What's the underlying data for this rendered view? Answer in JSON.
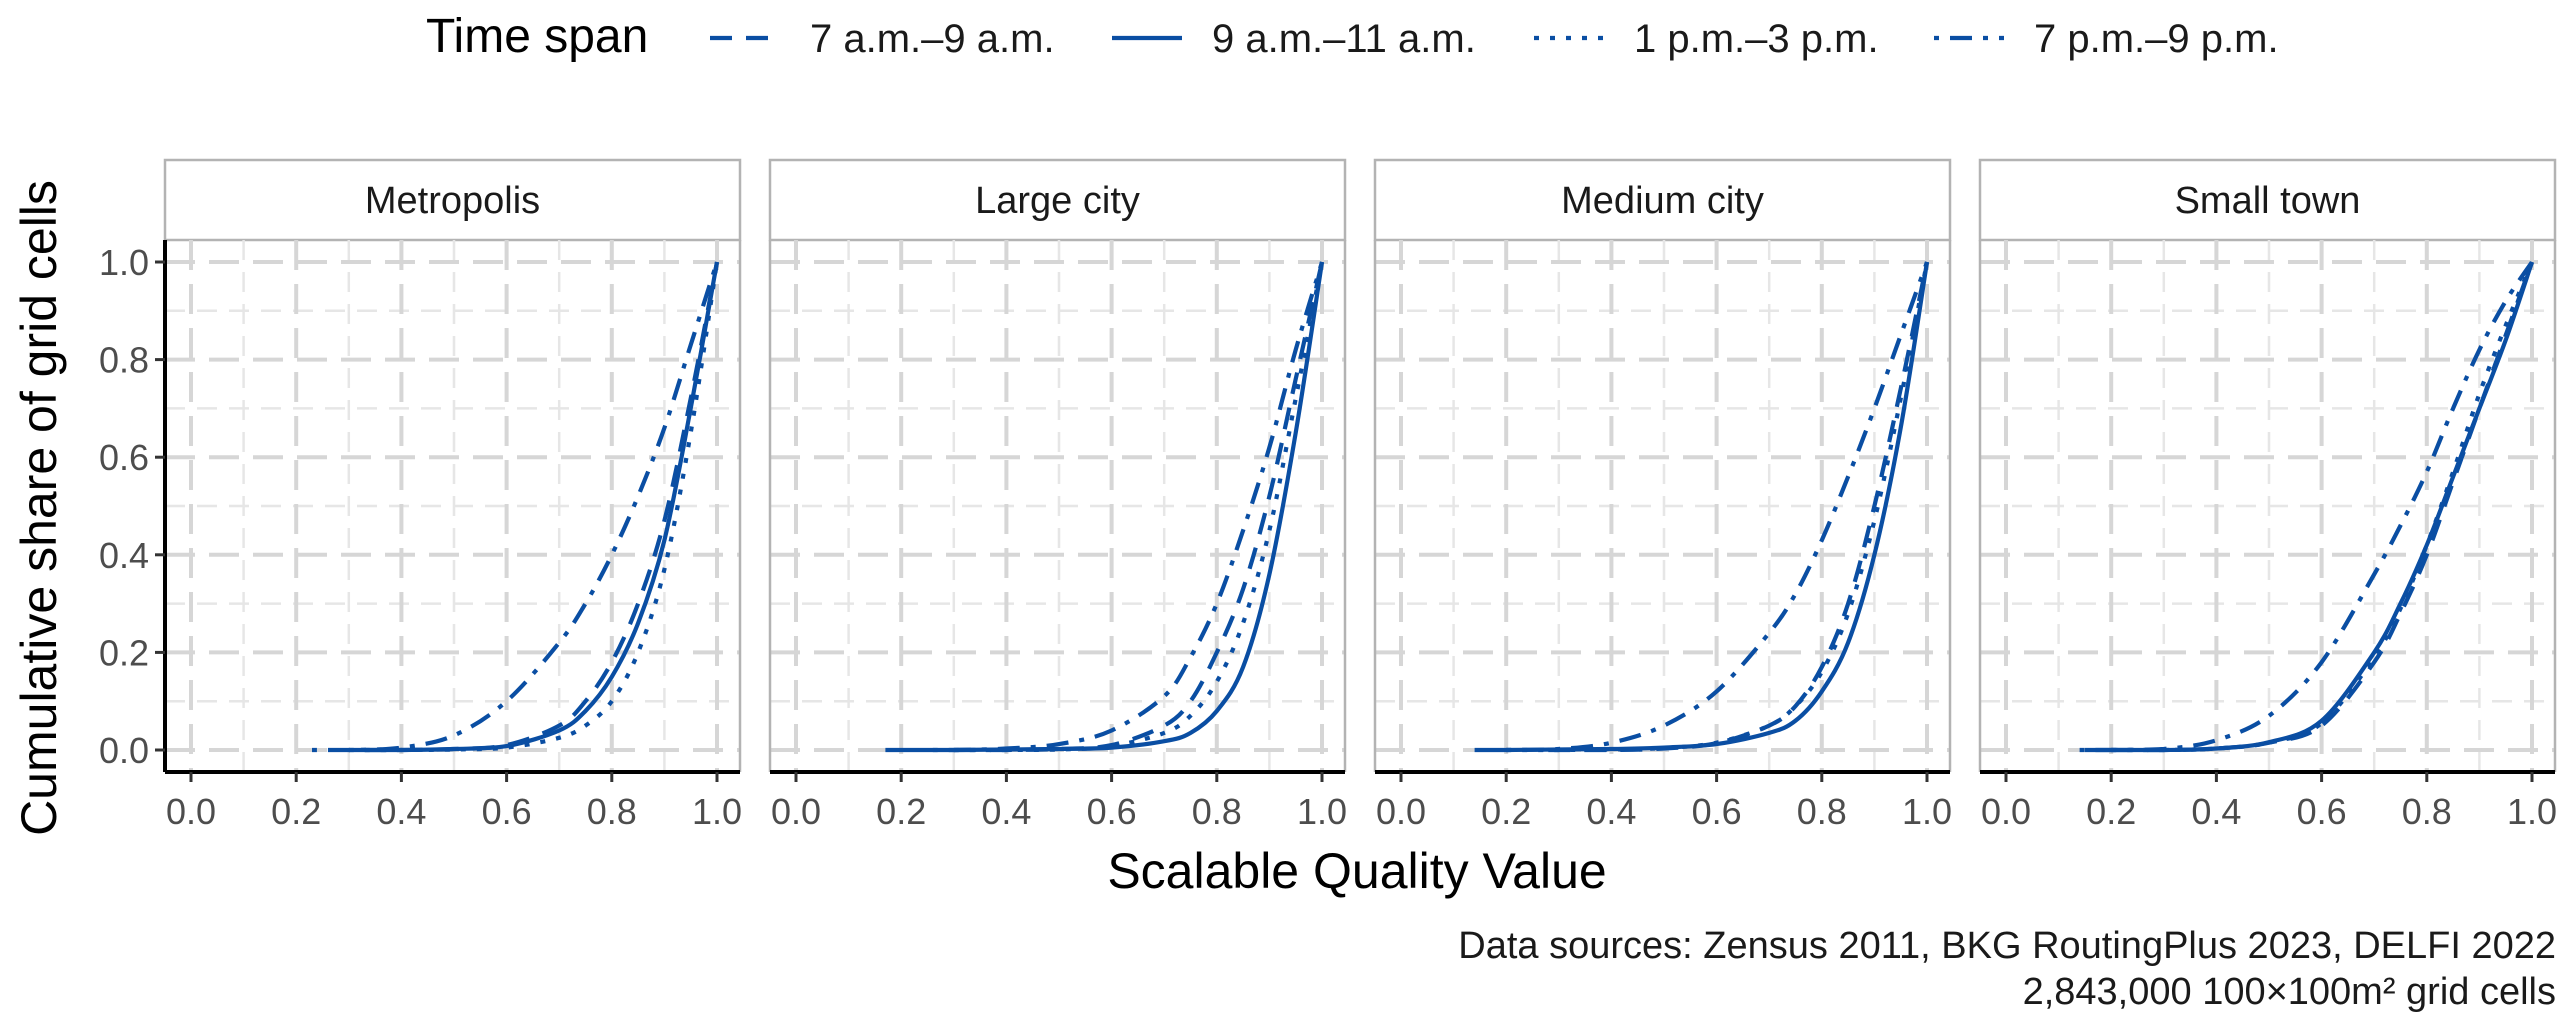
{
  "legend": {
    "title": "Time span",
    "items": [
      {
        "label": "7 a.m.–9 a.m.",
        "style": "dashed"
      },
      {
        "label": "9 a.m.–11 a.m.",
        "style": "solid"
      },
      {
        "label": "1 p.m.–3 p.m.",
        "style": "dotted"
      },
      {
        "label": "7 p.m.–9 p.m.",
        "style": "dotdash"
      }
    ]
  },
  "colors": {
    "series": "#0a4ea3"
  },
  "y_axis_title": "Cumulative share of grid cells",
  "x_axis_title": "Scalable Quality Value",
  "caption": {
    "line1": "Data sources: Zensus 2011, BKG RoutingPlus 2023, DELFI 2022",
    "line2": "2,843,000 100×100m² grid cells"
  },
  "chart_data": {
    "type": "line",
    "title": "",
    "xlabel": "Scalable Quality Value",
    "ylabel": "Cumulative share of grid cells",
    "xlim": [
      0,
      1
    ],
    "ylim": [
      0,
      1
    ],
    "x_ticks": [
      "0.0",
      "0.2",
      "0.4",
      "0.6",
      "0.8",
      "1.0"
    ],
    "y_ticks": [
      "0.0",
      "0.2",
      "0.4",
      "0.6",
      "0.8",
      "1.0"
    ],
    "legend_title": "Time span",
    "legend_position": "top",
    "x": [
      0.0,
      0.1,
      0.2,
      0.3,
      0.4,
      0.5,
      0.6,
      0.7,
      0.75,
      0.8,
      0.85,
      0.9,
      0.95,
      1.0
    ],
    "panels": [
      {
        "name": "Metropolis",
        "series": [
          {
            "name": "7 a.m.–9 a.m.",
            "x_min": 0.33,
            "values": [
              0,
              0,
              0,
              0,
              0,
              0.002,
              0.01,
              0.05,
              0.1,
              0.18,
              0.3,
              0.47,
              0.72,
              1.0
            ]
          },
          {
            "name": "9 a.m.–11 a.m.",
            "x_min": 0.3,
            "values": [
              0,
              0,
              0,
              0,
              0,
              0.002,
              0.008,
              0.04,
              0.08,
              0.15,
              0.26,
              0.43,
              0.7,
              1.0
            ]
          },
          {
            "name": "1 p.m.–3 p.m.",
            "x_min": 0.3,
            "values": [
              0,
              0,
              0,
              0,
              0,
              0.001,
              0.005,
              0.025,
              0.05,
              0.1,
              0.2,
              0.37,
              0.65,
              1.0
            ]
          },
          {
            "name": "7 p.m.–9 p.m.",
            "x_min": 0.23,
            "values": [
              0,
              0,
              0,
              0,
              0.005,
              0.03,
              0.1,
              0.22,
              0.3,
              0.4,
              0.52,
              0.66,
              0.83,
              1.0
            ]
          }
        ]
      },
      {
        "name": "Large city",
        "series": [
          {
            "name": "7 a.m.–9 a.m.",
            "x_min": 0.3,
            "values": [
              0,
              0,
              0,
              0,
              0,
              0.002,
              0.01,
              0.05,
              0.1,
              0.2,
              0.33,
              0.52,
              0.76,
              1.0
            ]
          },
          {
            "name": "9 a.m.–11 a.m.",
            "x_min": 0.17,
            "values": [
              0,
              0,
              0,
              0,
              0.001,
              0.002,
              0.005,
              0.018,
              0.035,
              0.08,
              0.17,
              0.36,
              0.65,
              1.0
            ]
          },
          {
            "name": "1 p.m.–3 p.m.",
            "x_min": 0.3,
            "values": [
              0,
              0,
              0,
              0,
              0,
              0.001,
              0.008,
              0.035,
              0.07,
              0.14,
              0.26,
              0.45,
              0.72,
              1.0
            ]
          },
          {
            "name": "7 p.m.–9 p.m.",
            "x_min": 0.26,
            "values": [
              0,
              0,
              0,
              0,
              0.003,
              0.012,
              0.04,
              0.11,
              0.19,
              0.3,
              0.45,
              0.62,
              0.82,
              1.0
            ]
          }
        ]
      },
      {
        "name": "Medium city",
        "series": [
          {
            "name": "7 a.m.–9 a.m.",
            "x_min": 0.28,
            "values": [
              0,
              0,
              0,
              0,
              0,
              0.003,
              0.014,
              0.05,
              0.09,
              0.17,
              0.3,
              0.5,
              0.74,
              1.0
            ]
          },
          {
            "name": "9 a.m.–11 a.m.",
            "x_min": 0.14,
            "values": [
              0,
              0,
              0,
              0.001,
              0.002,
              0.005,
              0.012,
              0.035,
              0.06,
              0.12,
              0.22,
              0.4,
              0.66,
              1.0
            ]
          },
          {
            "name": "1 p.m.–3 p.m.",
            "x_min": 0.2,
            "values": [
              0,
              0,
              0,
              0,
              0.001,
              0.004,
              0.015,
              0.05,
              0.09,
              0.16,
              0.28,
              0.47,
              0.72,
              1.0
            ]
          },
          {
            "name": "7 p.m.–9 p.m.",
            "x_min": 0.2,
            "values": [
              0,
              0,
              0,
              0.002,
              0.015,
              0.05,
              0.12,
              0.24,
              0.32,
              0.43,
              0.56,
              0.7,
              0.85,
              1.0
            ]
          }
        ]
      },
      {
        "name": "Small town",
        "series": [
          {
            "name": "7 a.m.–9 a.m.",
            "x_min": 0.2,
            "values": [
              0,
              0,
              0,
              0,
              0.003,
              0.015,
              0.05,
              0.18,
              0.28,
              0.4,
              0.55,
              0.7,
              0.85,
              1.0
            ]
          },
          {
            "name": "9 a.m.–11 a.m.",
            "x_min": 0.15,
            "values": [
              0,
              0,
              0,
              0,
              0.003,
              0.016,
              0.06,
              0.2,
              0.3,
              0.42,
              0.56,
              0.7,
              0.84,
              1.0
            ]
          },
          {
            "name": "1 p.m.–3 p.m.",
            "x_min": 0.2,
            "values": [
              0,
              0,
              0,
              0,
              0.003,
              0.015,
              0.055,
              0.19,
              0.29,
              0.42,
              0.57,
              0.73,
              0.87,
              1.0
            ]
          },
          {
            "name": "7 p.m.–9 p.m.",
            "x_min": 0.14,
            "values": [
              0,
              0,
              0,
              0.002,
              0.02,
              0.07,
              0.18,
              0.36,
              0.46,
              0.57,
              0.7,
              0.82,
              0.92,
              1.0
            ]
          }
        ]
      }
    ]
  }
}
